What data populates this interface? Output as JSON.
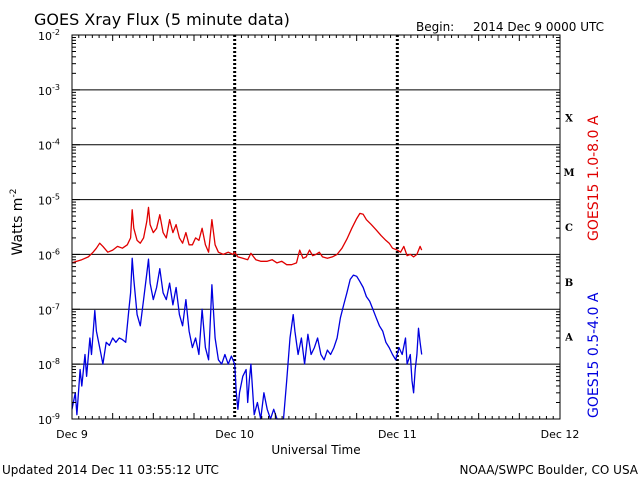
{
  "header": {
    "title": "GOES Xray Flux (5 minute data)",
    "begin_label": "Begin:",
    "begin_value": "2014 Dec 9 0000 UTC"
  },
  "footer": {
    "updated": "Updated 2014 Dec 11 03:55:12 UTC",
    "source": "NOAA/SWPC Boulder, CO USA"
  },
  "chart_data": {
    "type": "line",
    "title": "GOES Xray Flux (5 minute data)",
    "xlabel": "Universal Time",
    "ylabel": "Watts m",
    "ylabel_sup": "-2",
    "y_scale": "log",
    "ylim": [
      1e-09,
      0.01
    ],
    "xlim_days": [
      0,
      3
    ],
    "x_ticks": [
      "Dec 9",
      "Dec 10",
      "Dec 11",
      "Dec 12"
    ],
    "y_ticks": [
      {
        "base": "10",
        "exp": "-2",
        "value": 0.01
      },
      {
        "base": "10",
        "exp": "-3",
        "value": 0.001
      },
      {
        "base": "10",
        "exp": "-4",
        "value": 0.0001
      },
      {
        "base": "10",
        "exp": "-5",
        "value": 1e-05
      },
      {
        "base": "10",
        "exp": "-6",
        "value": 1e-06
      },
      {
        "base": "10",
        "exp": "-7",
        "value": 1e-07
      },
      {
        "base": "10",
        "exp": "-8",
        "value": 1e-08
      },
      {
        "base": "10",
        "exp": "-9",
        "value": 1e-09
      }
    ],
    "flare_classes": [
      {
        "label": "X",
        "value": 0.000316
      },
      {
        "label": "M",
        "value": 3.16e-05
      },
      {
        "label": "C",
        "value": 3.16e-06
      },
      {
        "label": "B",
        "value": 3.16e-07
      },
      {
        "label": "A",
        "value": 3.16e-08
      }
    ],
    "grid": true,
    "legend_placement": "right (vertical labels)",
    "series": [
      {
        "name": "GOES15 1.0-8.0 A",
        "color": "#e00000",
        "points": [
          [
            0.0,
            7e-07
          ],
          [
            0.03,
            7.5e-07
          ],
          [
            0.06,
            8e-07
          ],
          [
            0.1,
            9e-07
          ],
          [
            0.13,
            1.1e-06
          ],
          [
            0.15,
            1.3e-06
          ],
          [
            0.17,
            1.6e-06
          ],
          [
            0.19,
            1.4e-06
          ],
          [
            0.22,
            1.1e-06
          ],
          [
            0.25,
            1.2e-06
          ],
          [
            0.28,
            1.4e-06
          ],
          [
            0.31,
            1.3e-06
          ],
          [
            0.34,
            1.5e-06
          ],
          [
            0.36,
            2e-06
          ],
          [
            0.37,
            6.5e-06
          ],
          [
            0.38,
            3e-06
          ],
          [
            0.4,
            1.8e-06
          ],
          [
            0.42,
            1.6e-06
          ],
          [
            0.44,
            2e-06
          ],
          [
            0.46,
            4e-06
          ],
          [
            0.47,
            7.2e-06
          ],
          [
            0.48,
            3.5e-06
          ],
          [
            0.5,
            2.5e-06
          ],
          [
            0.52,
            3e-06
          ],
          [
            0.54,
            5.3e-06
          ],
          [
            0.56,
            2.5e-06
          ],
          [
            0.58,
            2e-06
          ],
          [
            0.6,
            4.3e-06
          ],
          [
            0.62,
            2.5e-06
          ],
          [
            0.64,
            3.5e-06
          ],
          [
            0.66,
            2e-06
          ],
          [
            0.68,
            1.6e-06
          ],
          [
            0.7,
            2.5e-06
          ],
          [
            0.72,
            1.5e-06
          ],
          [
            0.74,
            1.5e-06
          ],
          [
            0.76,
            2e-06
          ],
          [
            0.78,
            1.8e-06
          ],
          [
            0.8,
            3e-06
          ],
          [
            0.82,
            1.5e-06
          ],
          [
            0.84,
            1.1e-06
          ],
          [
            0.86,
            4.3e-06
          ],
          [
            0.88,
            1.5e-06
          ],
          [
            0.9,
            1.1e-06
          ],
          [
            0.93,
            1e-06
          ],
          [
            0.96,
            1.1e-06
          ],
          [
            0.99,
            1e-06
          ],
          [
            1.0,
            1.1e-06
          ],
          [
            1.02,
            9e-07
          ],
          [
            1.05,
            8.5e-07
          ],
          [
            1.08,
            8e-07
          ],
          [
            1.1,
            1.05e-06
          ],
          [
            1.13,
            8e-07
          ],
          [
            1.16,
            7.5e-07
          ],
          [
            1.2,
            7.5e-07
          ],
          [
            1.23,
            8e-07
          ],
          [
            1.26,
            7e-07
          ],
          [
            1.29,
            7.5e-07
          ],
          [
            1.32,
            6.5e-07
          ],
          [
            1.35,
            6.5e-07
          ],
          [
            1.38,
            7e-07
          ],
          [
            1.4,
            1.2e-06
          ],
          [
            1.42,
            8.5e-07
          ],
          [
            1.44,
            9e-07
          ],
          [
            1.46,
            1.2e-06
          ],
          [
            1.48,
            9.5e-07
          ],
          [
            1.5,
            1e-06
          ],
          [
            1.52,
            1.1e-06
          ],
          [
            1.54,
            9e-07
          ],
          [
            1.57,
            8.5e-07
          ],
          [
            1.6,
            9e-07
          ],
          [
            1.63,
            1e-06
          ],
          [
            1.66,
            1.3e-06
          ],
          [
            1.69,
            1.9e-06
          ],
          [
            1.72,
            3e-06
          ],
          [
            1.75,
            4.5e-06
          ],
          [
            1.77,
            5.6e-06
          ],
          [
            1.79,
            5.4e-06
          ],
          [
            1.81,
            4.3e-06
          ],
          [
            1.84,
            3.5e-06
          ],
          [
            1.87,
            2.8e-06
          ],
          [
            1.9,
            2.2e-06
          ],
          [
            1.93,
            1.8e-06
          ],
          [
            1.95,
            1.6e-06
          ],
          [
            1.97,
            1.3e-06
          ],
          [
            2.0,
            1.2e-06
          ],
          [
            2.02,
            1.1e-06
          ],
          [
            2.04,
            1.4e-06
          ],
          [
            2.06,
            9.5e-07
          ],
          [
            2.08,
            1e-06
          ],
          [
            2.1,
            9e-07
          ],
          [
            2.12,
            1e-06
          ],
          [
            2.14,
            1.4e-06
          ],
          [
            2.15,
            1.2e-06
          ]
        ]
      },
      {
        "name": "GOES15 0.5-4.0 A",
        "color": "#0000e0",
        "points": [
          [
            0.0,
            1.5e-09
          ],
          [
            0.02,
            3e-09
          ],
          [
            0.03,
            1.2e-09
          ],
          [
            0.05,
            8e-09
          ],
          [
            0.06,
            4e-09
          ],
          [
            0.08,
            1.5e-08
          ],
          [
            0.09,
            6e-09
          ],
          [
            0.11,
            3e-08
          ],
          [
            0.12,
            1.5e-08
          ],
          [
            0.14,
            9.5e-08
          ],
          [
            0.15,
            4e-08
          ],
          [
            0.17,
            2e-08
          ],
          [
            0.19,
            1e-08
          ],
          [
            0.21,
            2.5e-08
          ],
          [
            0.23,
            2.2e-08
          ],
          [
            0.25,
            3e-08
          ],
          [
            0.27,
            2.5e-08
          ],
          [
            0.29,
            3e-08
          ],
          [
            0.31,
            2.8e-08
          ],
          [
            0.33,
            2.5e-08
          ],
          [
            0.35,
            1e-07
          ],
          [
            0.36,
            2e-07
          ],
          [
            0.37,
            8.5e-07
          ],
          [
            0.38,
            3.5e-07
          ],
          [
            0.4,
            8e-08
          ],
          [
            0.42,
            5e-08
          ],
          [
            0.44,
            1.5e-07
          ],
          [
            0.46,
            4.5e-07
          ],
          [
            0.47,
            8.2e-07
          ],
          [
            0.48,
            3e-07
          ],
          [
            0.5,
            1.5e-07
          ],
          [
            0.52,
            2.5e-07
          ],
          [
            0.54,
            5.5e-07
          ],
          [
            0.56,
            2e-07
          ],
          [
            0.58,
            1.5e-07
          ],
          [
            0.6,
            3e-07
          ],
          [
            0.62,
            1.2e-07
          ],
          [
            0.64,
            2.5e-07
          ],
          [
            0.66,
            8e-08
          ],
          [
            0.68,
            5e-08
          ],
          [
            0.7,
            1.5e-07
          ],
          [
            0.72,
            4e-08
          ],
          [
            0.74,
            2e-08
          ],
          [
            0.76,
            3e-08
          ],
          [
            0.78,
            1.5e-08
          ],
          [
            0.8,
            1e-07
          ],
          [
            0.82,
            2e-08
          ],
          [
            0.84,
            1.2e-08
          ],
          [
            0.86,
            2.8e-07
          ],
          [
            0.88,
            3e-08
          ],
          [
            0.9,
            1.2e-08
          ],
          [
            0.92,
            1e-08
          ],
          [
            0.94,
            1.5e-08
          ],
          [
            0.96,
            1e-08
          ],
          [
            0.98,
            1.4e-08
          ],
          [
            1.0,
            1e-08
          ],
          [
            1.01,
            3e-09
          ],
          [
            1.02,
            1.5e-09
          ],
          [
            1.03,
            3e-09
          ],
          [
            1.05,
            6e-09
          ],
          [
            1.07,
            8e-09
          ],
          [
            1.08,
            2e-09
          ],
          [
            1.09,
            5e-09
          ],
          [
            1.1,
            1e-08
          ],
          [
            1.12,
            1.2e-09
          ],
          [
            1.14,
            2e-09
          ],
          [
            1.16,
            1e-09
          ],
          [
            1.18,
            3e-09
          ],
          [
            1.2,
            1.5e-09
          ],
          [
            1.22,
            1e-09
          ],
          [
            1.24,
            1.5e-09
          ],
          [
            1.26,
            1e-09
          ],
          [
            1.28,
            1e-09
          ],
          [
            1.3,
            1e-09
          ],
          [
            1.32,
            5e-09
          ],
          [
            1.34,
            3e-08
          ],
          [
            1.36,
            8e-08
          ],
          [
            1.37,
            4e-08
          ],
          [
            1.39,
            1.5e-08
          ],
          [
            1.41,
            3e-08
          ],
          [
            1.43,
            1e-08
          ],
          [
            1.45,
            3.5e-08
          ],
          [
            1.47,
            1.5e-08
          ],
          [
            1.49,
            2e-08
          ],
          [
            1.51,
            3e-08
          ],
          [
            1.53,
            1.5e-08
          ],
          [
            1.55,
            1.2e-08
          ],
          [
            1.57,
            1.8e-08
          ],
          [
            1.59,
            1.5e-08
          ],
          [
            1.61,
            2e-08
          ],
          [
            1.63,
            3e-08
          ],
          [
            1.65,
            7e-08
          ],
          [
            1.67,
            1.2e-07
          ],
          [
            1.69,
            2e-07
          ],
          [
            1.71,
            3.5e-07
          ],
          [
            1.73,
            4.2e-07
          ],
          [
            1.75,
            4e-07
          ],
          [
            1.77,
            3.2e-07
          ],
          [
            1.79,
            2.5e-07
          ],
          [
            1.81,
            1.7e-07
          ],
          [
            1.83,
            1.4e-07
          ],
          [
            1.85,
            1e-07
          ],
          [
            1.87,
            7e-08
          ],
          [
            1.89,
            5e-08
          ],
          [
            1.91,
            4e-08
          ],
          [
            1.93,
            2.5e-08
          ],
          [
            1.95,
            2e-08
          ],
          [
            1.97,
            1.5e-08
          ],
          [
            1.99,
            1.2e-08
          ],
          [
            2.01,
            2e-08
          ],
          [
            2.03,
            1.5e-08
          ],
          [
            2.05,
            3e-08
          ],
          [
            2.06,
            1e-08
          ],
          [
            2.08,
            1.5e-08
          ],
          [
            2.09,
            5e-09
          ],
          [
            2.1,
            3e-09
          ],
          [
            2.11,
            8e-09
          ],
          [
            2.12,
            1.5e-08
          ],
          [
            2.13,
            4.5e-08
          ],
          [
            2.14,
            2.5e-08
          ],
          [
            2.15,
            1.5e-08
          ]
        ]
      }
    ]
  }
}
